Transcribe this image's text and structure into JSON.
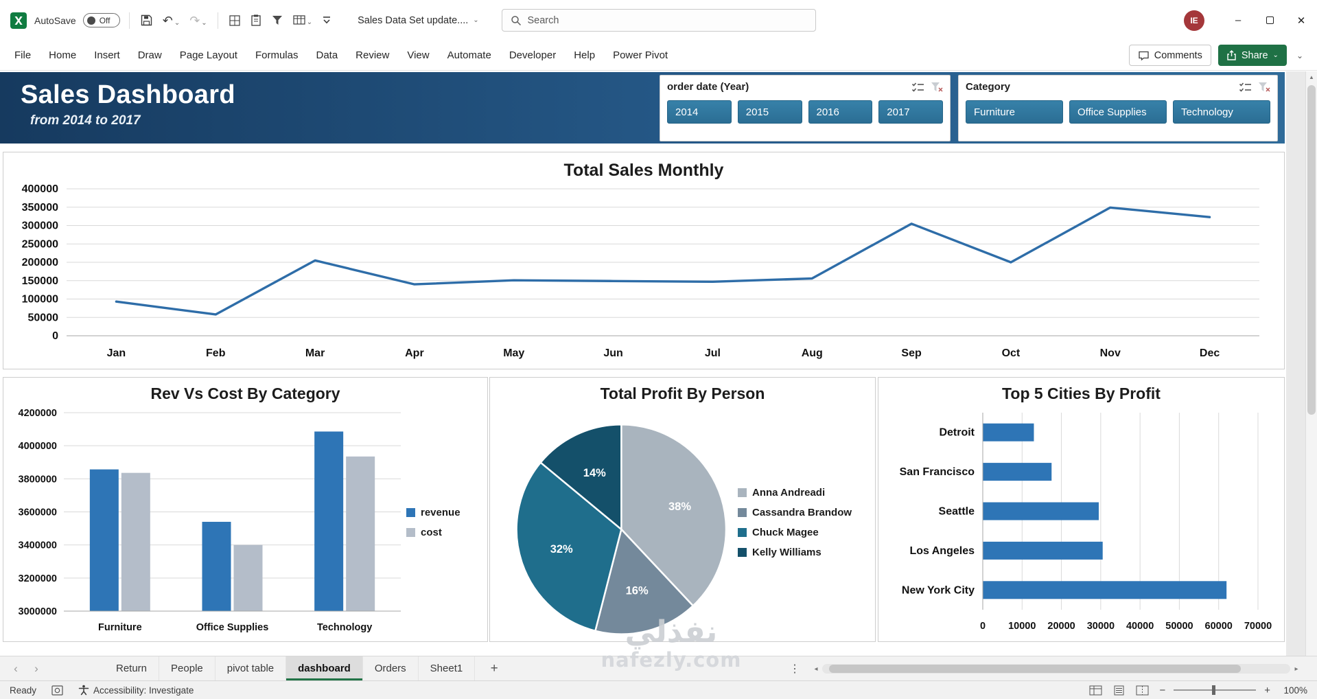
{
  "titlebar": {
    "autosave_label": "AutoSave",
    "autosave_state": "Off",
    "doc_title": "Sales Data Set update....",
    "search_placeholder": "Search",
    "avatar_initials": "IE"
  },
  "menubar": {
    "items": [
      "File",
      "Home",
      "Insert",
      "Draw",
      "Page Layout",
      "Formulas",
      "Data",
      "Review",
      "View",
      "Automate",
      "Developer",
      "Help",
      "Power Pivot"
    ],
    "comments_label": "Comments",
    "share_label": "Share"
  },
  "dashboard": {
    "banner": {
      "title": "Sales Dashboard",
      "subtitle": "from 2014 to 2017"
    },
    "slicers": [
      {
        "title": "order date (Year)",
        "buttons": [
          "2014",
          "2015",
          "2016",
          "2017"
        ]
      },
      {
        "title": "Category",
        "buttons": [
          "Furniture",
          "Office Supplies",
          "Technology"
        ]
      }
    ]
  },
  "chart_data": [
    {
      "type": "line",
      "title": "Total Sales Monthly",
      "x": [
        "Jan",
        "Feb",
        "Mar",
        "Apr",
        "May",
        "Jun",
        "Jul",
        "Aug",
        "Sep",
        "Oct",
        "Nov",
        "Dec"
      ],
      "values": [
        93000,
        58000,
        205000,
        140000,
        151000,
        149000,
        147000,
        156000,
        305000,
        200000,
        349000,
        323000
      ],
      "ylim": [
        0,
        400000
      ],
      "ytick_step": 50000,
      "line_color": "#2E6DA8",
      "grid": true,
      "legend": "none"
    },
    {
      "type": "bar",
      "title": "Rev Vs Cost By Category",
      "categories": [
        "Furniture",
        "Office Supplies",
        "Technology"
      ],
      "series": [
        {
          "name": "revenue",
          "color": "#2E75B6",
          "values": [
            3857000,
            3540000,
            4086000
          ]
        },
        {
          "name": "cost",
          "color": "#B4BDC9",
          "values": [
            3836000,
            3400000,
            3935000
          ]
        }
      ],
      "ylim": [
        3000000,
        4200000
      ],
      "ytick_step": 200000,
      "grid": true,
      "legend": "right"
    },
    {
      "type": "pie",
      "title": "Total Profit By Person",
      "slices": [
        {
          "name": "Anna Andreadi",
          "pct": 38,
          "color": "#A9B4BE"
        },
        {
          "name": "Cassandra Brandow",
          "pct": 16,
          "color": "#74899B"
        },
        {
          "name": "Chuck Magee",
          "pct": 32,
          "color": "#1F6E8C"
        },
        {
          "name": "Kelly Williams",
          "pct": 14,
          "color": "#14506A"
        }
      ],
      "legend": "right"
    },
    {
      "type": "hbar",
      "title": "Top 5 Cities By Profit",
      "categories": [
        "Detroit",
        "San Francisco",
        "Seattle",
        "Los Angeles",
        "New York City"
      ],
      "values": [
        13000,
        17500,
        29500,
        30500,
        62000
      ],
      "xlim": [
        0,
        70000
      ],
      "xtick_step": 10000,
      "bar_color": "#2E75B6",
      "grid": true,
      "legend": "none"
    }
  ],
  "sheet_tabs": {
    "tabs": [
      "Return",
      "People",
      "pivot table",
      "dashboard",
      "Orders",
      "Sheet1"
    ],
    "active": "dashboard"
  },
  "statusbar": {
    "ready_label": "Ready",
    "accessibility_label": "Accessibility: Investigate",
    "zoom_value": "100%"
  },
  "watermark": {
    "line1": "نفذلي",
    "line2": "nafezly.com"
  },
  "icons": {
    "chevron_down": "⌄",
    "undo": "↶",
    "redo": "↷",
    "minimize": "–",
    "close": "✕",
    "add_sheet": "+",
    "ellipsis": "⋮",
    "tab_nav_left": "‹",
    "tab_nav_right": "›",
    "scroll_left": "◂",
    "scroll_right": "▸",
    "scroll_up": "▲",
    "scroll_down": "▼",
    "zoom_out": "−",
    "zoom_in": "+"
  }
}
